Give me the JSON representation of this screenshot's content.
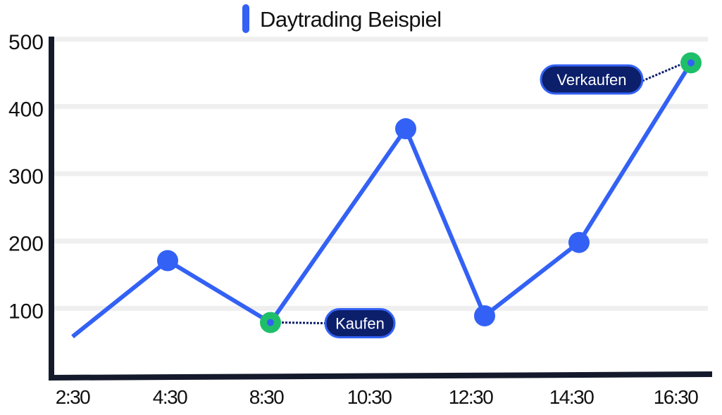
{
  "chart_data": {
    "type": "line",
    "title": "Daytrading Beispiel",
    "xlabel": "",
    "ylabel": "",
    "categories": [
      "2:30",
      "4:30",
      "8:30",
      "10:30",
      "12:30",
      "14:30",
      "16:30"
    ],
    "x_ticks": [
      "2:30",
      "4:30",
      "8:30",
      "10:30",
      "12:30",
      "14:30",
      "16:30"
    ],
    "y_ticks": [
      100,
      200,
      300,
      400,
      500
    ],
    "ylim": [
      0,
      500
    ],
    "grid": true,
    "legend": {
      "position": "top-center",
      "entries": [
        "Daytrading Beispiel"
      ]
    },
    "series": [
      {
        "name": "Daytrading Beispiel",
        "color": "#3361F5",
        "points": [
          {
            "x": "2:30",
            "y": 60,
            "marker": false
          },
          {
            "x": "4:30",
            "y": 173,
            "marker": true
          },
          {
            "x": "8:30",
            "y": 81,
            "marker": true,
            "highlight": "buy"
          },
          {
            "x": "10:30",
            "y": 369,
            "marker": true
          },
          {
            "x": "12:30",
            "y": 91,
            "marker": true
          },
          {
            "x": "14:30",
            "y": 200,
            "marker": true
          },
          {
            "x": "16:30",
            "y": 467,
            "marker": true,
            "highlight": "sell"
          }
        ]
      }
    ],
    "annotations": [
      {
        "label": "Kaufen",
        "at": "8:30",
        "side": "right"
      },
      {
        "label": "Verkaufen",
        "at": "16:30",
        "side": "left"
      }
    ]
  },
  "colors": {
    "line": "#3361F5",
    "axis": "#141a2c",
    "grid": "#efefef",
    "highlight": "#1fbf6a",
    "badge_fill": "#0c1f6b",
    "badge_border": "#3361F5",
    "badge_text": "#ffffff",
    "text": "#111111"
  },
  "legend": {
    "label": "Daytrading Beispiel"
  }
}
